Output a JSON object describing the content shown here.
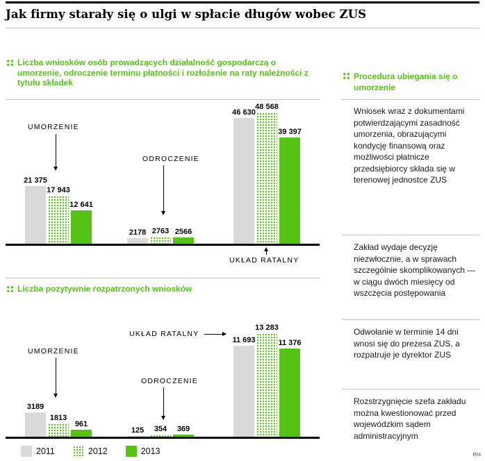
{
  "page": {
    "title": "Jak firmy starały się o ulgi w spłacie długów wobec ZUS",
    "credit": "RM"
  },
  "colors": {
    "accent_green": "#55c314",
    "bar_gray": "#d9d9d9"
  },
  "legend": [
    {
      "label": "2011",
      "swatch": "gray"
    },
    {
      "label": "2012",
      "swatch": "green-dotted"
    },
    {
      "label": "2013",
      "swatch": "green-solid"
    }
  ],
  "sidebar": {
    "heading": "Procedura ubiegania się o umorzenie",
    "blocks": [
      "Wniosek wraz z dokumentami potwierdzającymi zasadność umorzenia, obrazującymi kondycję finansową oraz możliwości płatnicze przedsiębiorcy składa się w terenowej jednostce ZUS",
      "Zakład wydaje decyzję niezwłocznie, a w sprawach szczególnie skomplikowanych — w ciągu dwóch miesięcy od wszczęcia postępowania",
      "Odwołanie w terminie 14 dni wnosi się do prezesa ZUS, a rozpatruje je dyrektor ZUS",
      "Rozstrzygnięcie szefa zakładu można kwestionować przed wojewódzkim sądem administracyjnym"
    ]
  },
  "chart_data": [
    {
      "type": "bar",
      "title": "Liczba wniosków osób prowadzących działalność gospodarczą o umorzenie, odroczenie terminu płatności i rozłożenie na raty należności z tytułu składek",
      "categories": [
        "UMORZENIE",
        "ODROCZENIE",
        "UKŁAD RATALNY"
      ],
      "series": [
        {
          "name": "2011",
          "values": [
            21375,
            2178,
            46630
          ],
          "labels": [
            "21 375",
            "2178",
            "46 630"
          ]
        },
        {
          "name": "2012",
          "values": [
            17943,
            2763,
            48568
          ],
          "labels": [
            "17 943",
            "2763",
            "48 568"
          ]
        },
        {
          "name": "2013",
          "values": [
            12641,
            2566,
            39397
          ],
          "labels": [
            "12 641",
            "2566",
            "39 397"
          ]
        }
      ],
      "ylim": [
        0,
        48568
      ],
      "grid": false,
      "legend_position": "bottom"
    },
    {
      "type": "bar",
      "title": "Liczba pozytywnie rozpatrzonych wniosków",
      "categories": [
        "UMORZENIE",
        "ODROCZENIE",
        "UKŁAD RATALNY"
      ],
      "series": [
        {
          "name": "2011",
          "values": [
            3189,
            125,
            11693
          ],
          "labels": [
            "3189",
            "125",
            "11 693"
          ]
        },
        {
          "name": "2012",
          "values": [
            1813,
            354,
            13283
          ],
          "labels": [
            "1813",
            "354",
            "13 283"
          ]
        },
        {
          "name": "2013",
          "values": [
            961,
            369,
            11376
          ],
          "labels": [
            "961",
            "369",
            "11 376"
          ]
        }
      ],
      "ylim": [
        0,
        13283
      ],
      "grid": false,
      "legend_position": "bottom"
    }
  ]
}
